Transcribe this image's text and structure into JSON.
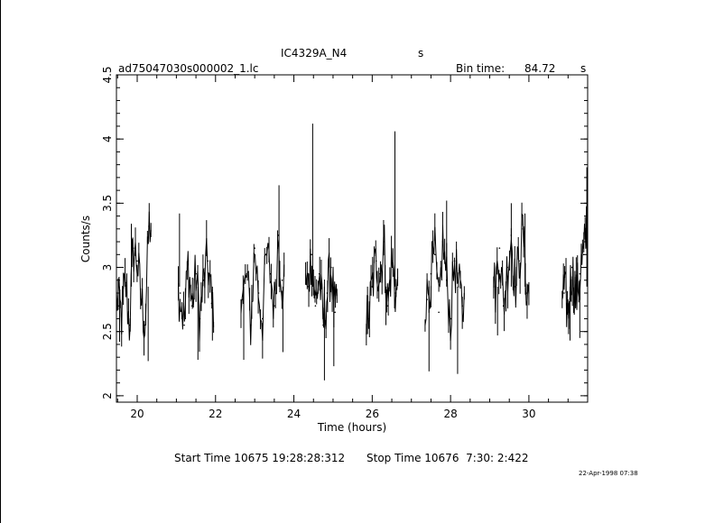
{
  "header": {
    "object_name": "IC4329A_N4",
    "object_unit": "s",
    "file_name": "ad75047030s000002_1.lc",
    "bin_time_label": "Bin time:",
    "bin_time_value": "84.72",
    "bin_time_unit": "s"
  },
  "footer": {
    "start_label": "Start Time 10675 19:28:28:312",
    "stop_label": "Stop Time 10676  7:30: 2:422",
    "date_stamp": "22-Apr-1998 07:38"
  },
  "chart_data": {
    "type": "line",
    "xlabel": "Time (hours)",
    "ylabel": "Counts/s",
    "xlim": [
      19.47,
      31.5
    ],
    "ylim": [
      1.95,
      4.5
    ],
    "xticks": [
      20,
      22,
      24,
      26,
      28,
      30
    ],
    "xtick_labels": [
      "20",
      "22",
      "24",
      "26",
      "28",
      "30"
    ],
    "yticks": [
      2,
      2.5,
      3,
      3.5,
      4,
      4.5
    ],
    "ytick_labels": [
      "2",
      "2.5",
      "3",
      "3.5",
      "4",
      "4.5"
    ],
    "grid": false,
    "line_color": "#000000",
    "segments": [
      {
        "x0": 19.47,
        "x1": 20.35,
        "x": [
          19.5,
          19.6,
          19.7,
          19.8,
          19.9,
          20.0,
          20.1,
          20.2,
          20.3
        ],
        "y": [
          2.75,
          2.62,
          2.88,
          2.55,
          3.15,
          3.05,
          2.75,
          2.55,
          3.32
        ],
        "spikes": [
          {
            "x": 19.55,
            "y": 2.42
          },
          {
            "x": 19.85,
            "y": 3.34
          },
          {
            "x": 20.28,
            "y": 2.27
          }
        ]
      },
      {
        "x0": 21.05,
        "x1": 21.95,
        "x": [
          21.1,
          21.2,
          21.3,
          21.4,
          21.5,
          21.6,
          21.7,
          21.8,
          21.9
        ],
        "y": [
          2.8,
          2.55,
          3.05,
          2.7,
          2.95,
          2.6,
          2.9,
          3.05,
          2.72
        ],
        "spikes": [
          {
            "x": 21.08,
            "y": 3.42
          },
          {
            "x": 21.55,
            "y": 2.28
          },
          {
            "x": 21.92,
            "y": 2.43
          }
        ]
      },
      {
        "x0": 22.65,
        "x1": 23.75,
        "x": [
          22.7,
          22.8,
          22.9,
          23.0,
          23.1,
          23.2,
          23.3,
          23.4,
          23.5,
          23.6,
          23.7
        ],
        "y": [
          2.75,
          2.95,
          2.55,
          3.15,
          2.8,
          2.6,
          3.1,
          2.95,
          2.7,
          3.25,
          2.9
        ],
        "spikes": [
          {
            "x": 23.62,
            "y": 3.64
          },
          {
            "x": 23.72,
            "y": 2.34
          },
          {
            "x": 22.72,
            "y": 2.28
          }
        ]
      },
      {
        "x0": 24.3,
        "x1": 25.1,
        "x": [
          24.35,
          24.45,
          24.55,
          24.65,
          24.75,
          24.85,
          24.95,
          25.05
        ],
        "y": [
          2.85,
          3.1,
          2.7,
          2.95,
          2.55,
          2.8,
          3.0,
          2.65
        ],
        "spikes": [
          {
            "x": 24.48,
            "y": 4.12
          },
          {
            "x": 24.78,
            "y": 2.12
          },
          {
            "x": 25.02,
            "y": 2.23
          }
        ]
      },
      {
        "x0": 25.85,
        "x1": 26.65,
        "x": [
          25.9,
          26.0,
          26.1,
          26.2,
          26.3,
          26.4,
          26.5,
          26.6
        ],
        "y": [
          2.6,
          2.85,
          3.05,
          2.95,
          3.2,
          2.7,
          3.05,
          2.8
        ],
        "spikes": [
          {
            "x": 26.58,
            "y": 4.06
          },
          {
            "x": 25.88,
            "y": 2.48
          },
          {
            "x": 26.35,
            "y": 2.55
          }
        ]
      },
      {
        "x0": 27.35,
        "x1": 28.35,
        "x": [
          27.4,
          27.5,
          27.6,
          27.7,
          27.8,
          27.9,
          28.0,
          28.1,
          28.2,
          28.3
        ],
        "y": [
          2.75,
          2.95,
          3.1,
          2.65,
          3.2,
          2.9,
          2.6,
          3.05,
          2.85,
          2.7
        ],
        "spikes": [
          {
            "x": 27.45,
            "y": 2.19
          },
          {
            "x": 28.18,
            "y": 2.17
          },
          {
            "x": 27.9,
            "y": 3.52
          }
        ]
      },
      {
        "x0": 29.1,
        "x1": 30.0,
        "x": [
          29.15,
          29.25,
          29.35,
          29.45,
          29.55,
          29.65,
          29.75,
          29.85,
          29.95
        ],
        "y": [
          2.85,
          3.15,
          2.7,
          3.0,
          3.25,
          2.85,
          3.05,
          3.3,
          2.8
        ],
        "spikes": [
          {
            "x": 29.55,
            "y": 3.5
          },
          {
            "x": 29.2,
            "y": 2.47
          },
          {
            "x": 29.9,
            "y": 3.42
          }
        ]
      },
      {
        "x0": 30.85,
        "x1": 31.5,
        "x": [
          30.9,
          31.0,
          31.1,
          31.2,
          31.3,
          31.4,
          31.48
        ],
        "y": [
          2.8,
          2.65,
          3.0,
          2.75,
          2.95,
          3.1,
          3.3
        ],
        "spikes": [
          {
            "x": 31.48,
            "y": 3.78
          },
          {
            "x": 31.05,
            "y": 2.43
          },
          {
            "x": 31.3,
            "y": 2.45
          }
        ]
      }
    ]
  }
}
